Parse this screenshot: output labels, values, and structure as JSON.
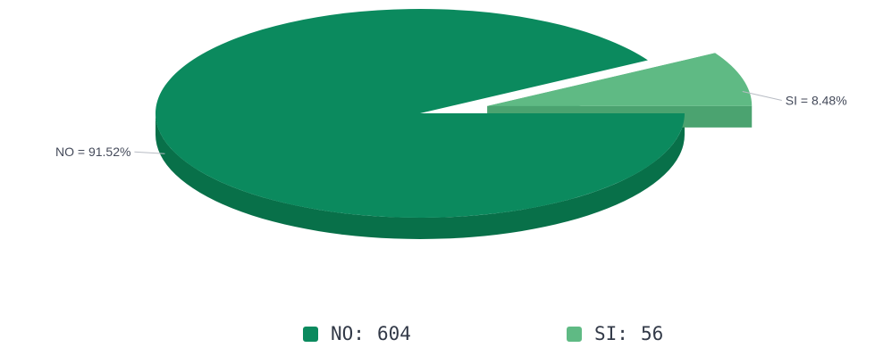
{
  "chart_data": {
    "type": "pie",
    "title": "",
    "style": "3d-exploded",
    "slices": [
      {
        "label": "NO",
        "value": 604,
        "percent_label": "NO = 91.52%",
        "color": "#0b8a5e",
        "side_color": "#087049"
      },
      {
        "label": "SI",
        "value": 56,
        "percent_label": "SI = 8.48%",
        "color": "#5fba84",
        "side_color": "#4ba370"
      }
    ],
    "legend": {
      "placement": "bottom",
      "items": [
        {
          "label": "NO:",
          "value": "604",
          "color": "#0b8a5e"
        },
        {
          "label": "SI:",
          "value": "56",
          "color": "#5fba84"
        }
      ]
    }
  }
}
